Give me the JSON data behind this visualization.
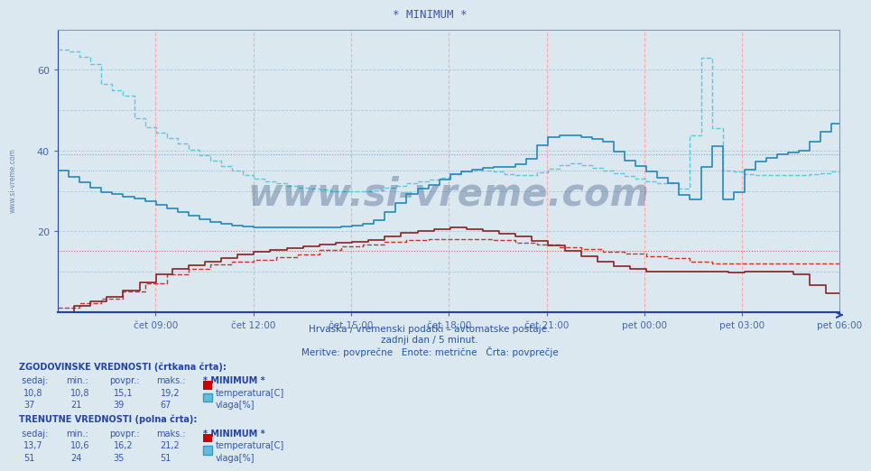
{
  "title": "* MINIMUM *",
  "title_color": "#4455aa",
  "bg_color": "#dce8f0",
  "plot_bg_color": "#dce8f0",
  "grid_v_color": "#ffaaaa",
  "grid_h_color": "#aaccdd",
  "grid_h_red_color": "#ffaaaa",
  "ylabel_color": "#4466aa",
  "xlabel_color": "#4466aa",
  "ylim": [
    0,
    70
  ],
  "yticks": [
    20,
    40,
    60
  ],
  "subtitle1": "Hrvaška / vremenski podatki – avtomatske postaje.",
  "subtitle2": "zadnji dan / 5 minut.",
  "subtitle3": "Meritve: povprečne   Enote: metrične   Črta: povprečje",
  "watermark": "www.si-vreme.com",
  "watermark_color": "#1a3a6e",
  "watermark_alpha": 0.3,
  "sidebar_text": "www.si-vreme.com",
  "xtick_labels": [
    "čet 09:00",
    "čet 12:00",
    "čet 15:00",
    "čet 18:00",
    "čet 21:00",
    "pet 00:00",
    "pet 03:00",
    "pet 06:00"
  ],
  "n_points": 288,
  "temp_hist_avg": 15.1,
  "vlaga_hist_avg": 39,
  "vlaga_curr_avg": 35,
  "temp_curr_avg": 16.2,
  "temp_color": "#cc0000",
  "vlaga_color": "#3399cc",
  "vlaga_hist_color": "#55aacc"
}
